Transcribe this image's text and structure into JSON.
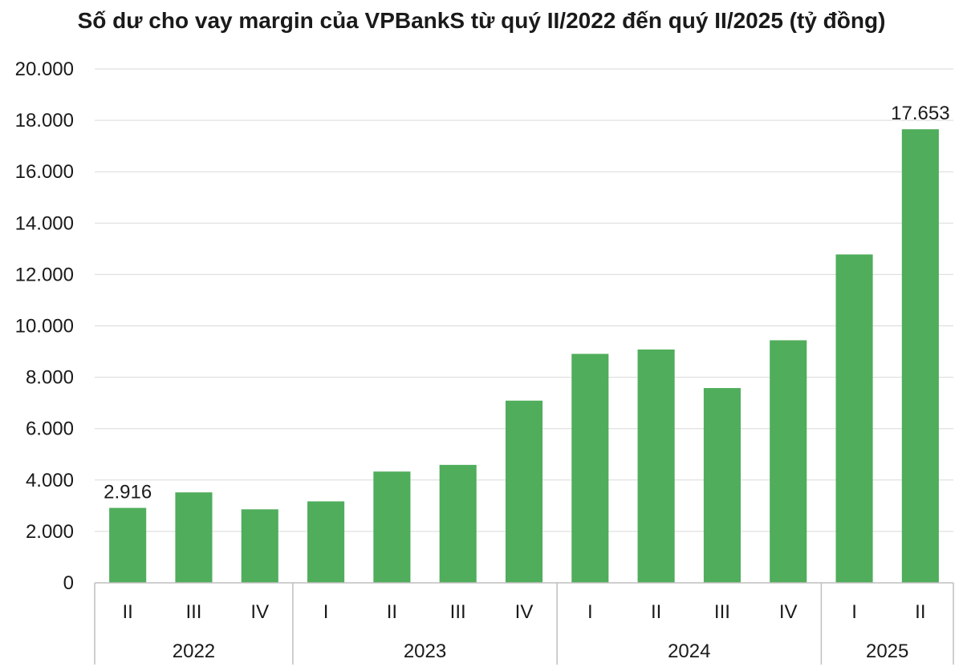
{
  "chart_data": {
    "type": "bar",
    "title": "Số dư cho vay margin của VPBankS từ quý II/2022 đến quý II/2025 (tỷ đồng)",
    "xlabel": "",
    "ylabel": "",
    "ylim": [
      0,
      20000
    ],
    "yticks": [
      0,
      2000,
      4000,
      6000,
      8000,
      10000,
      12000,
      14000,
      16000,
      18000,
      20000
    ],
    "ytick_labels": [
      "0",
      "2.000",
      "4.000",
      "6.000",
      "8.000",
      "10.000",
      "12.000",
      "14.000",
      "16.000",
      "18.000",
      "20.000"
    ],
    "categories": [
      "II",
      "III",
      "IV",
      "I",
      "II",
      "III",
      "IV",
      "I",
      "II",
      "III",
      "IV",
      "I",
      "II"
    ],
    "groups": [
      {
        "label": "2022",
        "count": 3
      },
      {
        "label": "2023",
        "count": 4
      },
      {
        "label": "2024",
        "count": 4
      },
      {
        "label": "2025",
        "count": 2
      }
    ],
    "values": [
      2916,
      3520,
      2860,
      3170,
      4330,
      4590,
      7090,
      8910,
      9080,
      7580,
      9440,
      12780,
      17653
    ],
    "data_labels": [
      {
        "index": 0,
        "text": "2.916"
      },
      {
        "index": 12,
        "text": "17.653"
      }
    ],
    "grid": true,
    "bar_color": "#4fad5b",
    "grid_color": "#d9d9d9",
    "axis_color": "#bfbfbf"
  }
}
